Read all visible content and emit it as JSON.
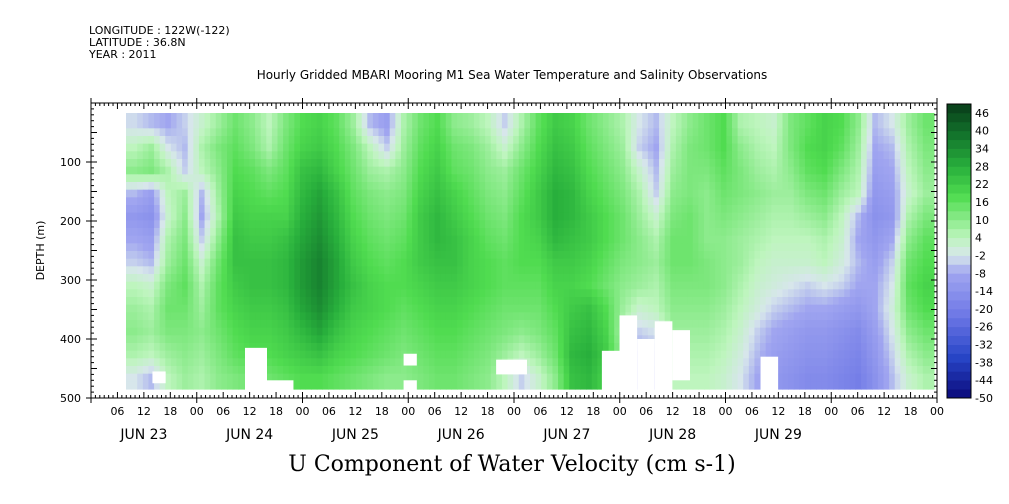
{
  "meta": {
    "longitude": "LONGITUDE : 122W(-122)",
    "latitude": "LATITUDE : 36.8N",
    "year": "YEAR : 2011"
  },
  "chart_data": {
    "type": "heatmap",
    "title": "Hourly Gridded MBARI Mooring M1 Sea Water Temperature and Salinity Observations",
    "xlabel": "U Component of Water Velocity (cm s-1)",
    "ylabel": "DEPTH (m)",
    "y_range": [
      500,
      0
    ],
    "y_ticks": [
      100,
      200,
      300,
      400,
      500
    ],
    "x_hour_ticks": [
      "06",
      "12",
      "18",
      "00",
      "06",
      "12",
      "18",
      "00",
      "06",
      "12",
      "18",
      "00",
      "06",
      "12",
      "18",
      "00",
      "06",
      "12",
      "18",
      "00",
      "06",
      "12",
      "18",
      "00",
      "06",
      "12",
      "18",
      "00",
      "06",
      "12",
      "18",
      "00"
    ],
    "x_days": [
      "JUN 23",
      "JUN 24",
      "JUN 25",
      "JUN 26",
      "JUN 27",
      "JUN 28",
      "JUN 29"
    ],
    "colorbar_labels": [
      "46",
      "40",
      "34",
      "28",
      "22",
      "16",
      "10",
      "4",
      "-2",
      "-8",
      "-14",
      "-20",
      "-26",
      "-32",
      "-38",
      "-44",
      "-50"
    ],
    "colorbar_levels": [
      -50,
      -47,
      -44,
      -41,
      -38,
      -35,
      -32,
      -29,
      -26,
      -23,
      -20,
      -17,
      -14,
      -11,
      -8,
      -5,
      -2,
      1,
      4,
      7,
      10,
      13,
      16,
      19,
      22,
      25,
      28,
      31,
      34,
      37,
      40,
      43,
      46,
      49
    ],
    "colors": {
      "frame": "#000000",
      "strong_negative": "#0a0a7a",
      "negative": "#9da0f0",
      "near_zero": "#c8f7c8",
      "positive": "#43d843",
      "strong_positive": "#0b4a1e"
    },
    "data_grid_rows": [
      [
        -3,
        -6,
        -8,
        -4,
        2,
        8,
        14,
        10,
        4,
        12,
        18,
        20,
        16,
        8,
        -6,
        -10,
        6,
        14,
        18,
        10,
        8,
        4,
        -4,
        6,
        16,
        22,
        20,
        14,
        10,
        6,
        -2,
        -6,
        4,
        10,
        14,
        18,
        6,
        4,
        2,
        12,
        16,
        20,
        18,
        10,
        -6,
        -2,
        8,
        14
      ],
      [
        4,
        8,
        -2,
        -6,
        6,
        12,
        16,
        12,
        6,
        14,
        20,
        22,
        18,
        12,
        4,
        -4,
        8,
        16,
        20,
        14,
        12,
        8,
        2,
        10,
        18,
        24,
        22,
        16,
        12,
        8,
        -4,
        -8,
        6,
        12,
        14,
        18,
        10,
        6,
        4,
        12,
        18,
        20,
        16,
        8,
        -8,
        -6,
        6,
        12
      ],
      [
        10,
        12,
        6,
        -4,
        4,
        10,
        18,
        16,
        12,
        16,
        24,
        26,
        20,
        14,
        8,
        6,
        10,
        18,
        22,
        16,
        14,
        10,
        8,
        14,
        20,
        26,
        24,
        18,
        14,
        10,
        2,
        -6,
        8,
        12,
        12,
        16,
        12,
        8,
        6,
        10,
        16,
        18,
        12,
        6,
        -10,
        -8,
        4,
        10
      ],
      [
        -6,
        -10,
        4,
        8,
        -6,
        8,
        20,
        18,
        16,
        18,
        26,
        30,
        24,
        16,
        12,
        10,
        12,
        20,
        24,
        20,
        16,
        12,
        10,
        16,
        22,
        28,
        26,
        20,
        16,
        12,
        6,
        -4,
        10,
        12,
        10,
        14,
        12,
        10,
        8,
        8,
        12,
        14,
        8,
        4,
        -12,
        -10,
        2,
        8
      ],
      [
        -12,
        -14,
        2,
        10,
        -8,
        6,
        22,
        20,
        20,
        20,
        28,
        32,
        26,
        18,
        14,
        12,
        14,
        22,
        26,
        22,
        18,
        14,
        12,
        18,
        22,
        28,
        26,
        22,
        18,
        14,
        8,
        2,
        12,
        14,
        10,
        12,
        10,
        8,
        6,
        6,
        8,
        10,
        4,
        -6,
        -14,
        -12,
        6,
        12
      ],
      [
        -8,
        -10,
        6,
        12,
        -4,
        10,
        24,
        22,
        22,
        24,
        30,
        34,
        28,
        20,
        16,
        14,
        16,
        22,
        26,
        24,
        20,
        16,
        14,
        18,
        20,
        26,
        24,
        22,
        18,
        14,
        10,
        6,
        14,
        14,
        10,
        10,
        8,
        6,
        4,
        4,
        4,
        6,
        2,
        -8,
        -12,
        -8,
        10,
        16
      ],
      [
        -4,
        -6,
        8,
        14,
        2,
        14,
        24,
        24,
        24,
        26,
        32,
        36,
        30,
        22,
        18,
        16,
        18,
        22,
        24,
        24,
        20,
        18,
        16,
        18,
        18,
        22,
        22,
        20,
        16,
        12,
        10,
        8,
        14,
        14,
        12,
        10,
        8,
        4,
        2,
        2,
        2,
        4,
        0,
        -6,
        -10,
        -4,
        14,
        18
      ],
      [
        4,
        2,
        12,
        16,
        6,
        16,
        22,
        24,
        24,
        26,
        32,
        36,
        30,
        24,
        20,
        18,
        18,
        20,
        22,
        22,
        20,
        18,
        16,
        16,
        16,
        20,
        20,
        18,
        14,
        10,
        8,
        6,
        12,
        12,
        12,
        10,
        6,
        2,
        0,
        -2,
        -4,
        -2,
        -4,
        -8,
        -8,
        -2,
        16,
        20
      ],
      [
        8,
        6,
        14,
        14,
        8,
        16,
        20,
        22,
        22,
        24,
        30,
        34,
        28,
        22,
        20,
        18,
        16,
        18,
        20,
        20,
        18,
        16,
        14,
        14,
        14,
        18,
        22,
        24,
        18,
        8,
        2,
        4,
        10,
        10,
        10,
        8,
        4,
        0,
        -4,
        -6,
        -8,
        -8,
        -10,
        -12,
        -8,
        0,
        14,
        18
      ],
      [
        10,
        8,
        12,
        12,
        10,
        14,
        18,
        20,
        20,
        22,
        26,
        30,
        24,
        20,
        18,
        16,
        14,
        16,
        18,
        18,
        16,
        14,
        12,
        10,
        12,
        16,
        24,
        26,
        20,
        6,
        -4,
        -2,
        8,
        8,
        8,
        6,
        2,
        -4,
        -8,
        -10,
        -12,
        -12,
        -14,
        -16,
        -10,
        -2,
        10,
        14
      ],
      [
        6,
        4,
        8,
        10,
        8,
        12,
        16,
        18,
        18,
        20,
        22,
        24,
        20,
        18,
        16,
        14,
        12,
        14,
        16,
        16,
        14,
        12,
        8,
        4,
        8,
        14,
        26,
        28,
        22,
        8,
        -8,
        -6,
        6,
        6,
        6,
        4,
        0,
        -6,
        -10,
        -12,
        -14,
        -14,
        -16,
        -18,
        -12,
        -4,
        6,
        10
      ],
      [
        -2,
        -6,
        4,
        8,
        6,
        10,
        12,
        14,
        14,
        16,
        18,
        18,
        16,
        14,
        12,
        10,
        10,
        12,
        14,
        14,
        12,
        10,
        4,
        -4,
        2,
        10,
        24,
        26,
        20,
        10,
        -10,
        -8,
        4,
        4,
        4,
        2,
        -2,
        -8,
        -12,
        -14,
        -16,
        -16,
        -18,
        -20,
        -14,
        -6,
        2,
        6
      ]
    ],
    "white_gaps": [
      {
        "hour_start": 6,
        "hour_end": 9,
        "depth_top": 455,
        "depth_bottom": 475
      },
      {
        "hour_start": 27,
        "hour_end": 32,
        "depth_top": 415,
        "depth_bottom": 490
      },
      {
        "hour_start": 32,
        "hour_end": 38,
        "depth_top": 470,
        "depth_bottom": 490
      },
      {
        "hour_start": 63,
        "hour_end": 66,
        "depth_top": 425,
        "depth_bottom": 445
      },
      {
        "hour_start": 63,
        "hour_end": 66,
        "depth_top": 470,
        "depth_bottom": 490
      },
      {
        "hour_start": 84,
        "hour_end": 91,
        "depth_top": 435,
        "depth_bottom": 460
      },
      {
        "hour_start": 108,
        "hour_end": 112,
        "depth_top": 420,
        "depth_bottom": 490
      },
      {
        "hour_start": 112,
        "hour_end": 116,
        "depth_top": 360,
        "depth_bottom": 490
      },
      {
        "hour_start": 116,
        "hour_end": 120,
        "depth_top": 400,
        "depth_bottom": 490
      },
      {
        "hour_start": 120,
        "hour_end": 124,
        "depth_top": 370,
        "depth_bottom": 490
      },
      {
        "hour_start": 124,
        "hour_end": 128,
        "depth_top": 385,
        "depth_bottom": 470
      },
      {
        "hour_start": 144,
        "hour_end": 148,
        "depth_top": 430,
        "depth_bottom": 490
      }
    ]
  }
}
